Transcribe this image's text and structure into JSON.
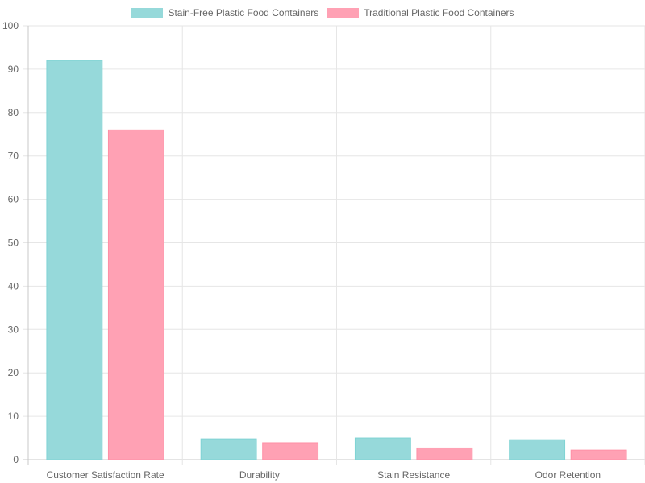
{
  "chart_data": {
    "type": "bar",
    "categories": [
      "Customer Satisfaction Rate",
      "Durability",
      "Stain Resistance",
      "Odor Retention"
    ],
    "series": [
      {
        "name": "Stain-Free Plastic Food Containers",
        "values": [
          92,
          4.8,
          5,
          4.6
        ],
        "color": "#96d9da",
        "border": "#7fd3d4"
      },
      {
        "name": "Traditional Plastic Food Containers",
        "values": [
          76,
          3.9,
          2.7,
          2.2
        ],
        "color": "#ffa1b4",
        "border": "#ff90a6"
      }
    ],
    "ylim": [
      0,
      100
    ],
    "yticks": [
      "0",
      "10",
      "20",
      "30",
      "40",
      "50",
      "60",
      "70",
      "80",
      "90",
      "100"
    ],
    "grid": true,
    "legend_position": "top-center"
  }
}
